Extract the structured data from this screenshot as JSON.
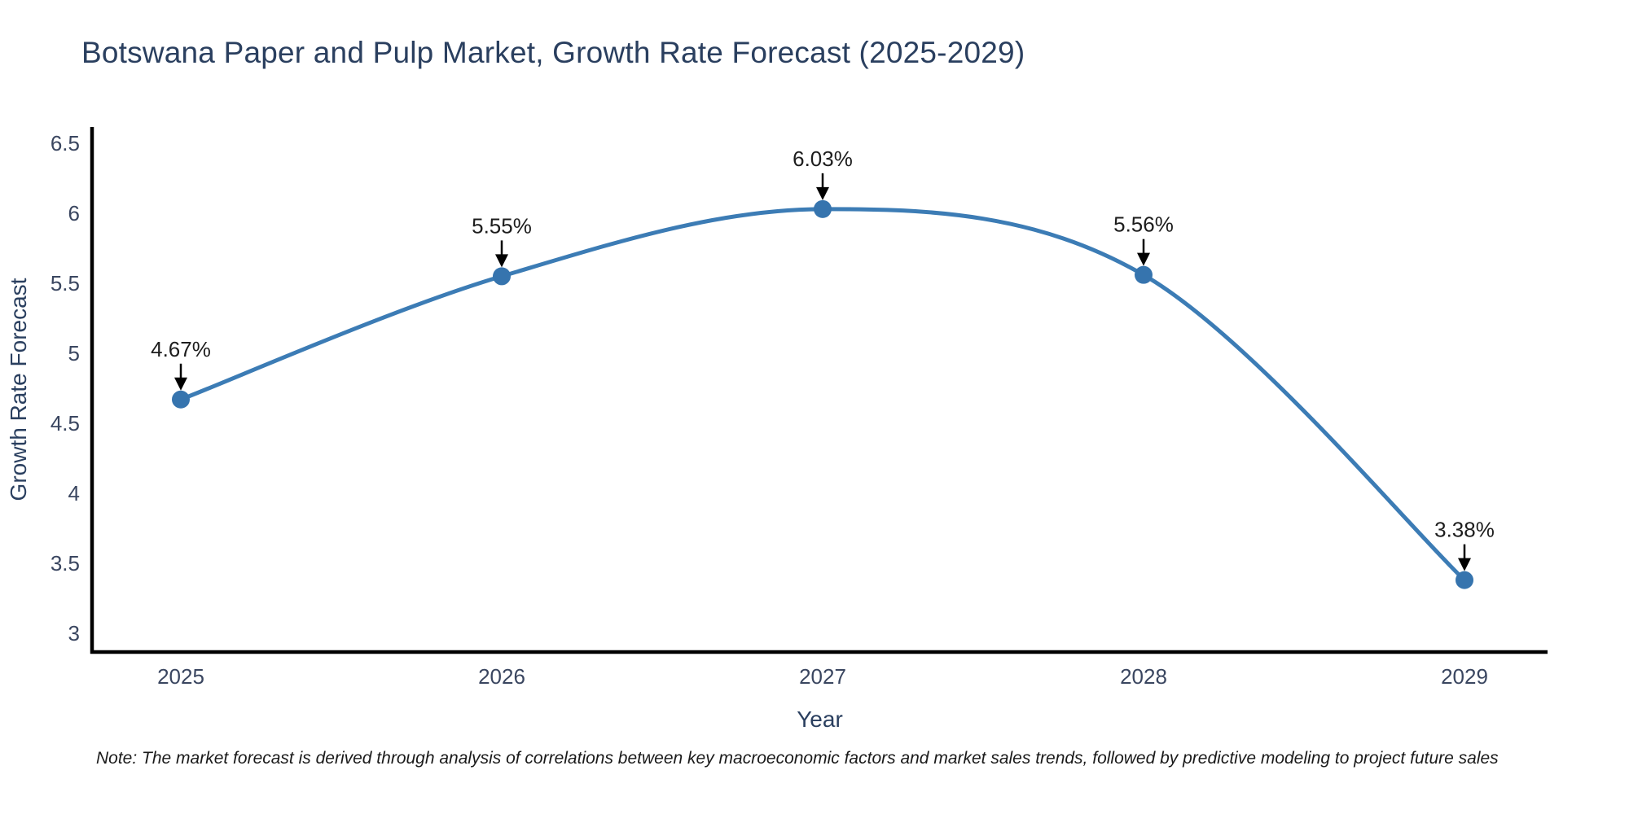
{
  "note": "Note: The market forecast is derived through analysis of correlations between key macroeconomic factors and market sales trends, followed by predictive modeling to project future sales",
  "colors": {
    "background": "#ffffff",
    "line": "#3c7cb5",
    "marker": "#3674ae",
    "axis": "#000000",
    "title_text": "#2a3f5f",
    "axis_title_text": "#2a3f5f",
    "tick_text": "#3a4660",
    "annotation_text": "#1d1d1d",
    "arrow": "#000000",
    "note_text": "#1a1a1a"
  },
  "chart_data": {
    "type": "line",
    "title": "Botswana Paper and Pulp Market, Growth Rate Forecast (2025-2029)",
    "categories": [
      "2025",
      "2026",
      "2027",
      "2028",
      "2029"
    ],
    "series": [
      {
        "name": "Growth Rate Forecast",
        "values": [
          4.67,
          5.55,
          6.03,
          5.56,
          3.38
        ]
      }
    ],
    "point_labels": [
      "4.67%",
      "5.55%",
      "6.03%",
      "5.56%",
      "3.38%"
    ],
    "xlabel": "Year",
    "ylabel": "Growth Rate Forecast",
    "ylim": [
      3,
      6.5
    ],
    "ytick_interval": 0.5,
    "ytick_labels": [
      "3",
      "3.5",
      "4",
      "4.5",
      "5",
      "5.5",
      "6",
      "6.5"
    ],
    "grid": false,
    "legend_position": "none",
    "line_shape": "spline",
    "marker": "circle",
    "annotation_arrows": true
  }
}
